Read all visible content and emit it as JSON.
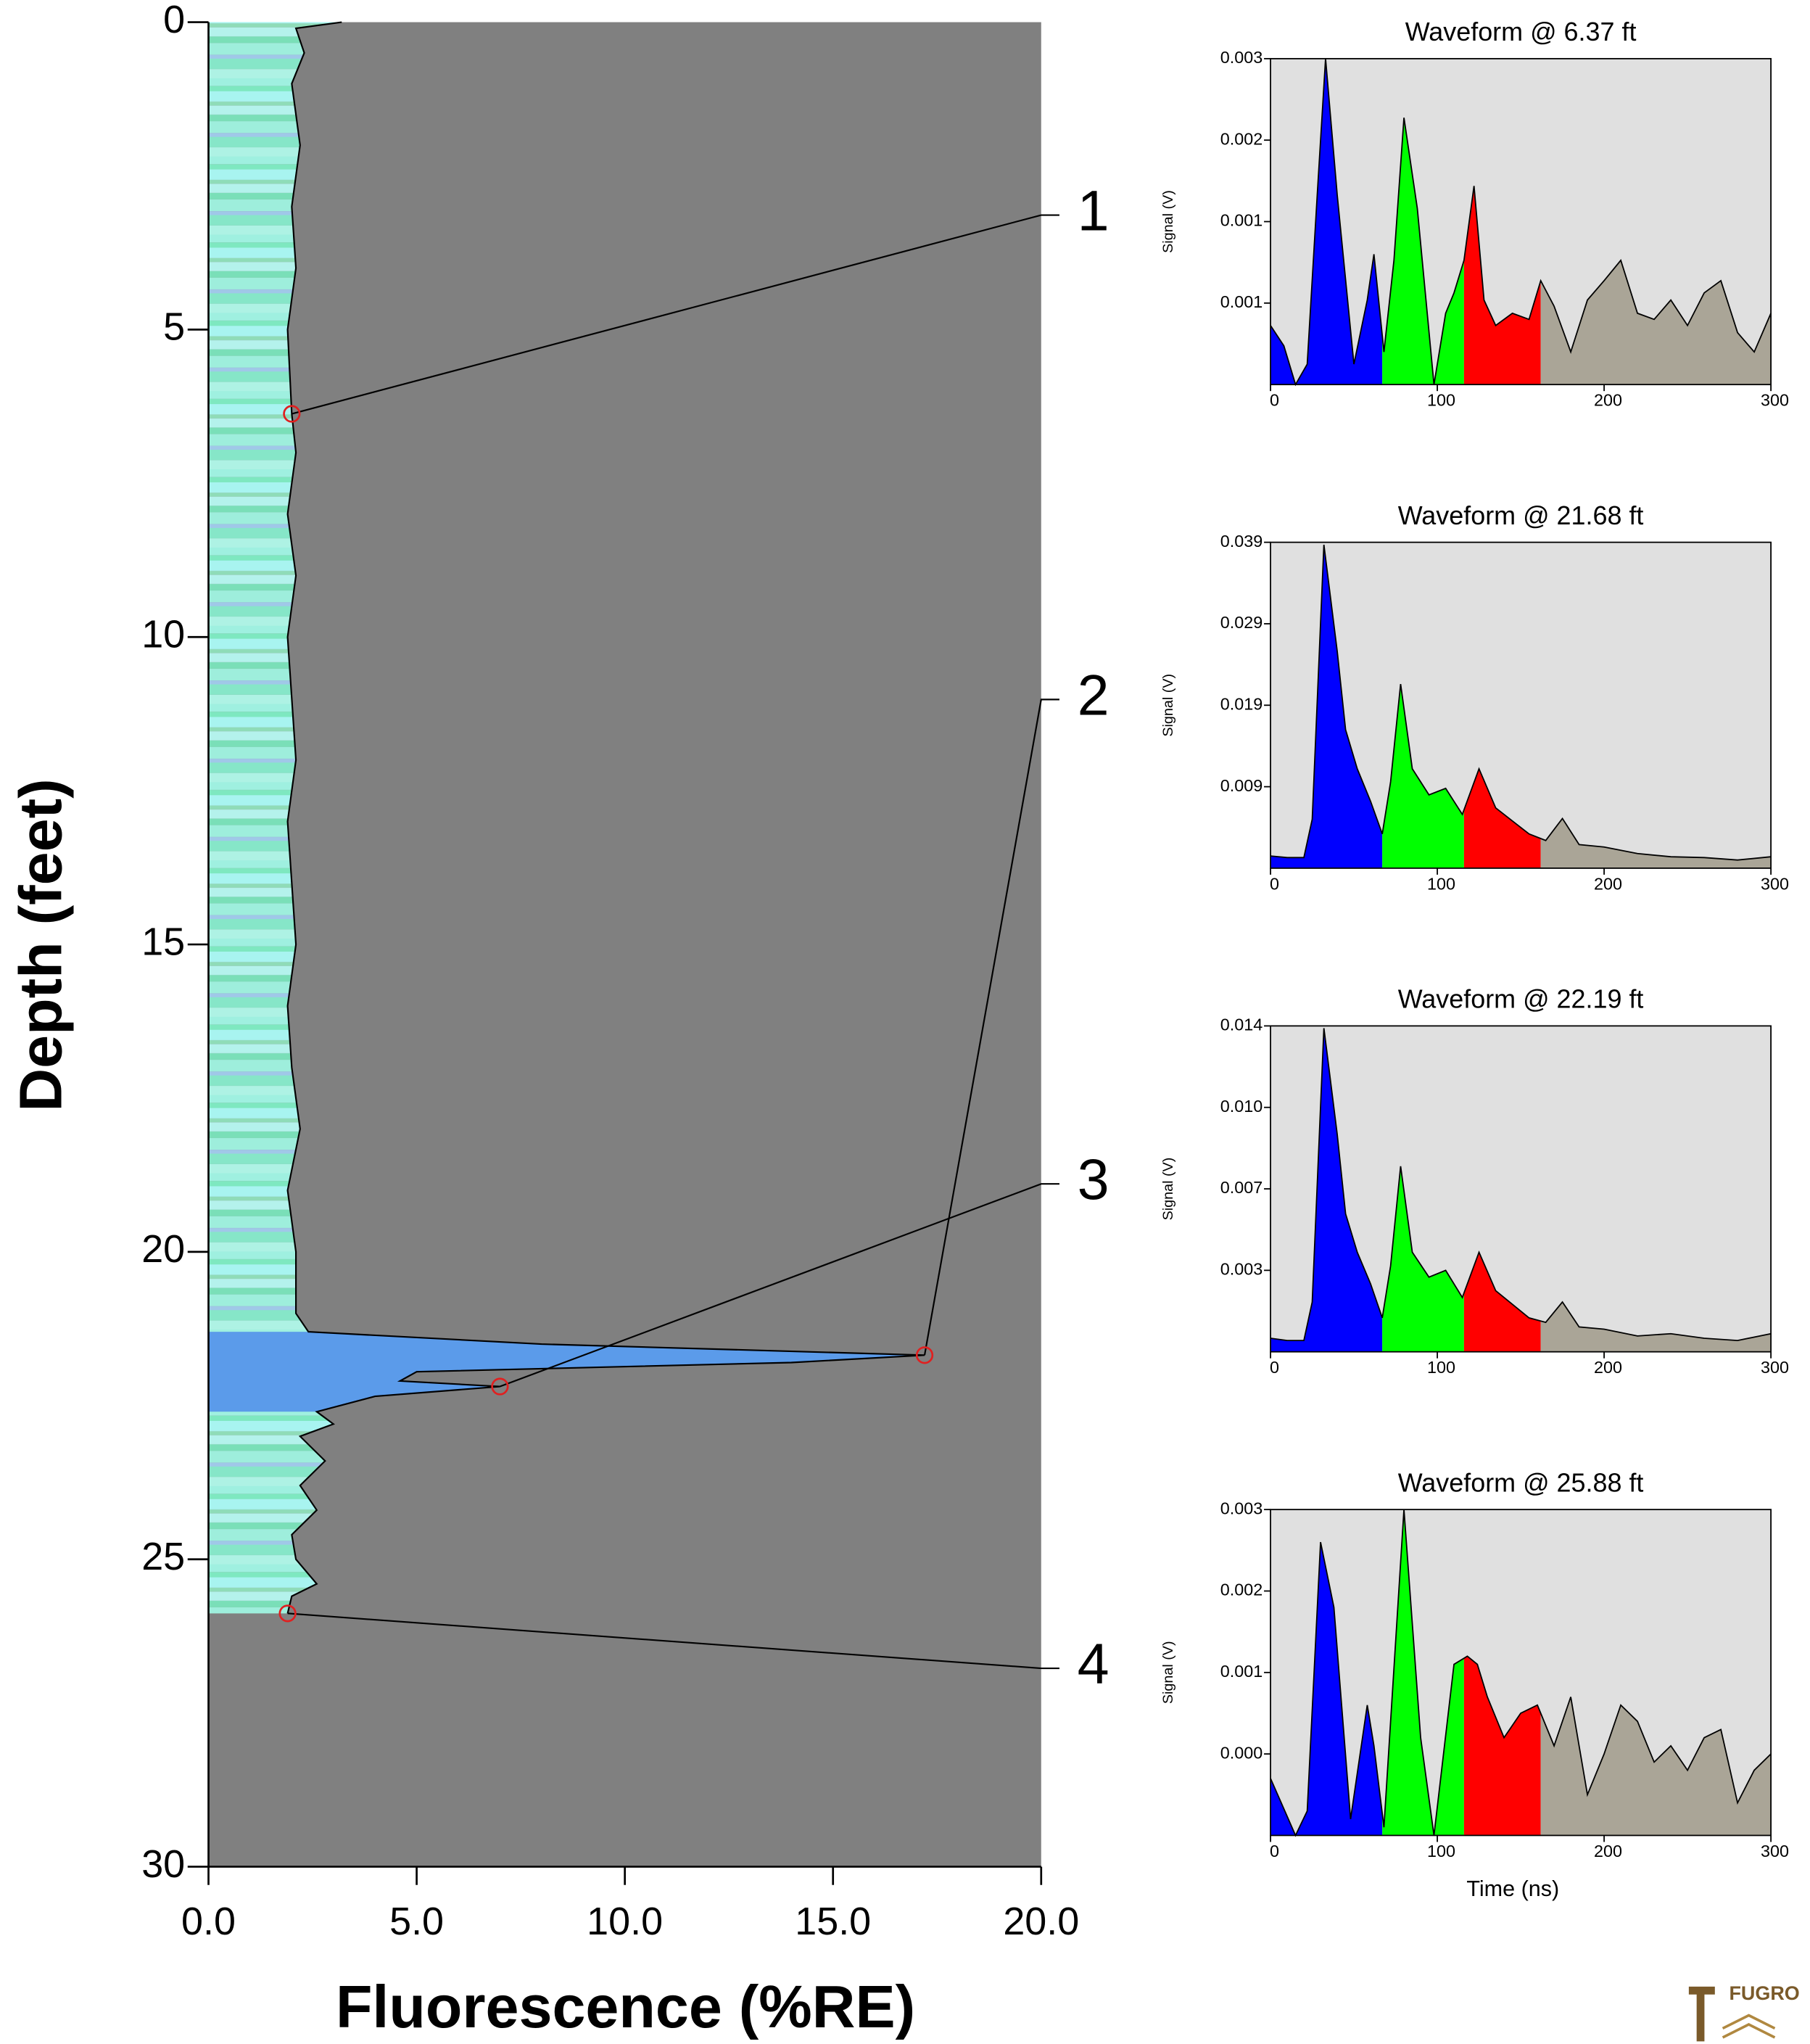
{
  "chart_data": [
    {
      "type": "area-profile",
      "xlabel": "Fluorescence (%RE)",
      "ylabel": "Depth (feet)",
      "y": [
        0,
        0.1,
        0.5,
        1,
        2,
        3,
        4,
        5,
        6.37,
        7,
        8,
        9,
        10,
        11,
        12,
        13,
        14,
        15,
        16,
        17,
        18,
        19,
        20,
        21,
        21.3,
        21.5,
        21.68,
        21.8,
        21.95,
        22.1,
        22.19,
        22.35,
        22.6,
        22.8,
        23.0,
        23.4,
        23.8,
        24.2,
        24.6,
        25.0,
        25.4,
        25.6,
        25.88
      ],
      "values": [
        3.2,
        2.1,
        2.3,
        2.0,
        2.2,
        2.0,
        2.1,
        1.9,
        2.0,
        2.1,
        1.9,
        2.1,
        1.9,
        2.0,
        2.1,
        1.9,
        2.0,
        2.1,
        1.9,
        2.0,
        2.2,
        1.9,
        2.1,
        2.1,
        2.4,
        8,
        17.2,
        14,
        5.0,
        4.6,
        7.0,
        4.0,
        2.6,
        3.0,
        2.2,
        2.8,
        2.2,
        2.6,
        2.0,
        2.1,
        2.6,
        2.0,
        1.9
      ],
      "xlim": [
        0,
        20
      ],
      "ylim": [
        0,
        30
      ],
      "xticks": [
        {
          "value": 0,
          "label": "0.0"
        },
        {
          "value": 5,
          "label": "5.0"
        },
        {
          "value": 10,
          "label": "10.0"
        },
        {
          "value": 15,
          "label": "15.0"
        },
        {
          "value": 20,
          "label": "20.0"
        }
      ],
      "yticks": [
        0,
        5,
        10,
        15,
        20,
        25,
        30
      ],
      "background": "#808080",
      "highlight": {
        "ylim": [
          21.3,
          22.6
        ],
        "color": "#5b9bea"
      },
      "markers": [
        {
          "label": "1",
          "y": 6.37,
          "value": 2.0
        },
        {
          "label": "2",
          "y": 21.68,
          "value": 17.2
        },
        {
          "label": "3",
          "y": 22.19,
          "value": 7.0
        },
        {
          "label": "4",
          "y": 25.88,
          "value": 1.9
        }
      ]
    },
    {
      "type": "waveform",
      "title": "Waveform @ 6.37 ft",
      "ylabel": "Signal (V)",
      "x": [
        0,
        8,
        15,
        22,
        28,
        33,
        40,
        50,
        58,
        62,
        68,
        74,
        80,
        88,
        98,
        105,
        110,
        116,
        122,
        128,
        135,
        145,
        155,
        162,
        170,
        180,
        190,
        200,
        210,
        220,
        230,
        240,
        250,
        260,
        270,
        280,
        290,
        300
      ],
      "values": [
        0.00038,
        0.00018,
        -0.0002,
        0.0,
        0.00166,
        0.003,
        0.00166,
        0.0,
        0.00063,
        0.00108,
        0.00012,
        0.00102,
        0.00242,
        0.00153,
        -0.0002,
        0.0005,
        0.0007,
        0.00102,
        0.00175,
        0.00063,
        0.00038,
        0.0005,
        0.00044,
        0.00082,
        0.00057,
        0.00012,
        0.00063,
        0.00082,
        0.00102,
        0.0005,
        0.00044,
        0.00063,
        0.00038,
        0.0007,
        0.00082,
        0.00031,
        0.00012,
        0.0005
      ],
      "xlim": [
        0,
        300
      ],
      "ylim": [
        -0.0002,
        0.003
      ],
      "xticks": [
        0,
        100,
        200,
        300
      ],
      "yticks": [
        0.003,
        {
          "value": 0.0022,
          "label": "0.002"
        },
        {
          "value": 0.0014,
          "label": "0.001"
        },
        {
          "value": 0.0006,
          "label": "0.001"
        }
      ],
      "gates": [
        0,
        67,
        116,
        162,
        300
      ],
      "gate_colors": [
        "#0000ff",
        "#00ff00",
        "#ff0000",
        "#aaa597"
      ],
      "background": "#e0e0e0"
    },
    {
      "type": "waveform",
      "title": "Waveform @ 21.68 ft",
      "ylabel": "Signal (V)",
      "x": [
        0,
        10,
        20,
        25,
        32,
        40,
        45,
        52,
        60,
        67,
        72,
        78,
        85,
        95,
        105,
        115,
        125,
        135,
        145,
        155,
        165,
        175,
        185,
        200,
        220,
        240,
        260,
        280,
        300
      ],
      "values": [
        0.0005,
        0.0003,
        0.0003,
        0.005,
        0.0387,
        0.0256,
        0.016,
        0.0112,
        0.0072,
        0.0032,
        0.0096,
        0.0216,
        0.0112,
        0.008,
        0.0088,
        0.0056,
        0.0112,
        0.0064,
        0.0048,
        0.0032,
        0.0024,
        0.0051,
        0.0019,
        0.0016,
        0.0008,
        0.0004,
        0.0003,
        0.0,
        0.0004
      ],
      "xlim": [
        0,
        300
      ],
      "ylim": [
        -0.001,
        0.039
      ],
      "xticks": [
        0,
        100,
        200,
        300
      ],
      "yticks": [
        0.039,
        0.029,
        0.019,
        0.009
      ],
      "gates": [
        0,
        67,
        116,
        162,
        300
      ],
      "gate_colors": [
        "#0000ff",
        "#00ff00",
        "#ff0000",
        "#aaa597"
      ],
      "background": "#e0e0e0"
    },
    {
      "type": "waveform",
      "title": "Waveform @ 22.19 ft",
      "ylabel": "Signal (V)",
      "x": [
        0,
        10,
        20,
        25,
        32,
        40,
        45,
        52,
        60,
        67,
        72,
        78,
        85,
        95,
        105,
        115,
        125,
        135,
        145,
        155,
        165,
        175,
        185,
        200,
        220,
        240,
        260,
        280,
        300
      ],
      "values": [
        0.0002,
        0.0001,
        0.0001,
        0.0018,
        0.0139,
        0.0092,
        0.0057,
        0.004,
        0.0026,
        0.0011,
        0.0034,
        0.0078,
        0.004,
        0.0029,
        0.0032,
        0.002,
        0.004,
        0.0023,
        0.0017,
        0.0011,
        0.0009,
        0.0018,
        0.0007,
        0.0006,
        0.0003,
        0.0004,
        0.0002,
        0.0001,
        0.0004
      ],
      "xlim": [
        0,
        300
      ],
      "ylim": [
        -0.0004,
        0.014
      ],
      "xticks": [
        0,
        100,
        200,
        300
      ],
      "yticks": [
        0.014,
        {
          "value": 0.0104,
          "label": "0.010"
        },
        {
          "value": 0.0068,
          "label": "0.007"
        },
        {
          "value": 0.0032,
          "label": "0.003"
        }
      ],
      "gates": [
        0,
        67,
        116,
        162,
        300
      ],
      "gate_colors": [
        "#0000ff",
        "#00ff00",
        "#ff0000",
        "#aaa597"
      ],
      "background": "#e0e0e0"
    },
    {
      "type": "waveform",
      "title": "Waveform @ 25.88 ft",
      "ylabel": "Signal (V)",
      "xlabel": "Time (ns)",
      "x": [
        0,
        15,
        22,
        30,
        38,
        48,
        58,
        62,
        68,
        80,
        90,
        98,
        110,
        118,
        124,
        130,
        140,
        150,
        160,
        170,
        180,
        190,
        200,
        210,
        220,
        230,
        240,
        250,
        260,
        270,
        280,
        290,
        300
      ],
      "values": [
        -0.0003,
        -0.001,
        -0.0007,
        0.0026,
        0.0018,
        -0.0008,
        0.0006,
        0.0001,
        -0.0009,
        0.003,
        0.0002,
        -0.001,
        0.0011,
        0.0012,
        0.0011,
        0.0007,
        0.0002,
        0.0005,
        0.0006,
        0.0001,
        0.0007,
        -0.0005,
        0,
        0.0006,
        0.0004,
        -0.0001,
        0.0001,
        -0.0002,
        0.0002,
        0.0003,
        -0.0006,
        -0.0002,
        0
      ],
      "xlim": [
        0,
        300
      ],
      "ylim": [
        -0.001,
        0.003
      ],
      "xticks": [
        0,
        100,
        200,
        300
      ],
      "yticks": [
        0.003,
        0.002,
        0.001,
        {
          "value": 0,
          "label": "0.000"
        }
      ],
      "gates": [
        0,
        67,
        116,
        162,
        300
      ],
      "gate_colors": [
        "#0000ff",
        "#00ff00",
        "#ff0000",
        "#aaa597"
      ],
      "background": "#e0e0e0"
    }
  ],
  "logo": "FUGRO"
}
